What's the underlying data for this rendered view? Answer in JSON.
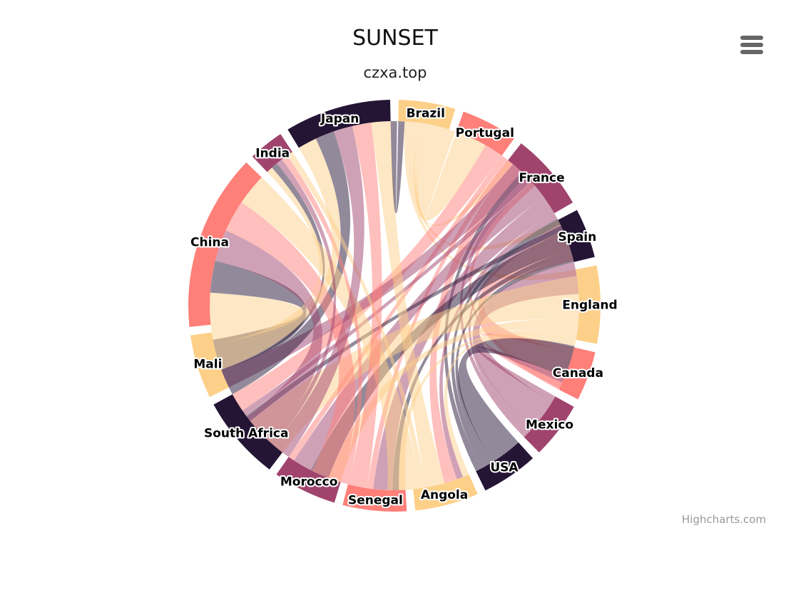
{
  "title": "SUNSET",
  "subtitle": "czxa.top",
  "credits": "Highcharts.com",
  "menu_icon": "hamburger-menu-icon",
  "chart_data": {
    "type": "dependencywheel",
    "colors": [
      "#FDD089",
      "#FF7F79",
      "#A0446E",
      "#251535"
    ],
    "link_opacity": 0.5,
    "nodes": [
      "Brazil",
      "Portugal",
      "France",
      "Spain",
      "England",
      "Canada",
      "Mexico",
      "USA",
      "Angola",
      "Senegal",
      "Morocco",
      "South Africa",
      "Mali",
      "China",
      "India",
      "Japan"
    ],
    "links": [
      [
        "Brazil",
        "Portugal",
        5
      ],
      [
        "Brazil",
        "France",
        1
      ],
      [
        "Brazil",
        "Spain",
        1
      ],
      [
        "Brazil",
        "England",
        1
      ],
      [
        "Canada",
        "Portugal",
        1
      ],
      [
        "Canada",
        "France",
        5
      ],
      [
        "Canada",
        "England",
        1
      ],
      [
        "Mexico",
        "Portugal",
        1
      ],
      [
        "Mexico",
        "France",
        1
      ],
      [
        "Mexico",
        "Spain",
        5
      ],
      [
        "Mexico",
        "England",
        1
      ],
      [
        "USA",
        "Portugal",
        1
      ],
      [
        "USA",
        "France",
        1
      ],
      [
        "USA",
        "Spain",
        1
      ],
      [
        "USA",
        "England",
        5
      ],
      [
        "Portugal",
        "Angola",
        2
      ],
      [
        "Portugal",
        "Senegal",
        1
      ],
      [
        "Portugal",
        "Morocco",
        1
      ],
      [
        "Portugal",
        "South Africa",
        3
      ],
      [
        "France",
        "Angola",
        1
      ],
      [
        "France",
        "Senegal",
        3
      ],
      [
        "France",
        "Mali",
        3
      ],
      [
        "France",
        "Morocco",
        3
      ],
      [
        "France",
        "South Africa",
        1
      ],
      [
        "Spain",
        "Senegal",
        1
      ],
      [
        "Spain",
        "Morocco",
        3
      ],
      [
        "Spain",
        "South Africa",
        1
      ],
      [
        "England",
        "Angola",
        1
      ],
      [
        "England",
        "Senegal",
        1
      ],
      [
        "England",
        "Morocco",
        2
      ],
      [
        "England",
        "South Africa",
        7
      ],
      [
        "South Africa",
        "China",
        5
      ],
      [
        "South Africa",
        "India",
        1
      ],
      [
        "South Africa",
        "Japan",
        3
      ],
      [
        "Angola",
        "China",
        5
      ],
      [
        "Angola",
        "India",
        1
      ],
      [
        "Angola",
        "Japan",
        3
      ],
      [
        "Senegal",
        "China",
        5
      ],
      [
        "Senegal",
        "India",
        1
      ],
      [
        "Senegal",
        "Japan",
        3
      ],
      [
        "Mali",
        "China",
        5
      ],
      [
        "Mali",
        "India",
        1
      ],
      [
        "Mali",
        "Japan",
        3
      ],
      [
        "Morocco",
        "China",
        5
      ],
      [
        "Morocco",
        "India",
        1
      ],
      [
        "Morocco",
        "Japan",
        3
      ],
      [
        "Japan",
        "Brazil",
        1
      ]
    ]
  }
}
